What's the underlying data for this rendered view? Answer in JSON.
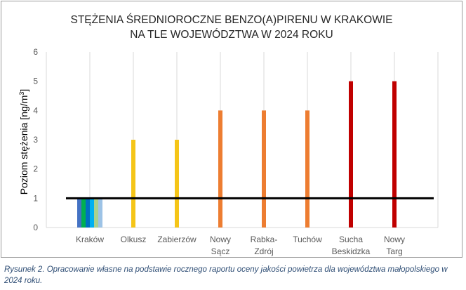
{
  "chart_data": {
    "type": "bar",
    "title_lines": [
      "STĘŻENIA ŚREDNIOROCZNE BENZO(A)PIRENU W KRAKOWIE",
      "NA TLE WOJEWÓDZTWA W 2024 ROKU"
    ],
    "ylabel_main": "Poziom stężenia [ng/m",
    "ylabel_sup": "3",
    "ylabel_end": "]",
    "ylim": [
      0,
      6
    ],
    "yticks": [
      "0",
      "1",
      "2",
      "3",
      "4",
      "5",
      "6"
    ],
    "grid": "vertical",
    "categories": [
      {
        "lines": [
          "Kraków"
        ]
      },
      {
        "lines": [
          "Olkusz"
        ]
      },
      {
        "lines": [
          "Zabierzów"
        ]
      },
      {
        "lines": [
          "Nowy",
          "Sącz"
        ]
      },
      {
        "lines": [
          "Rabka-",
          "Zdrój"
        ]
      },
      {
        "lines": [
          "Tuchów"
        ]
      },
      {
        "lines": [
          "Sucha",
          "Beskidzka"
        ]
      },
      {
        "lines": [
          "Nowy",
          "Targ"
        ]
      }
    ],
    "bars": [
      {
        "category": 0,
        "value": 1,
        "color": "#4472c4"
      },
      {
        "category": 0,
        "value": 1,
        "color": "#00b050"
      },
      {
        "category": 0,
        "value": 1,
        "color": "#0070c0"
      },
      {
        "category": 0,
        "value": 1,
        "color": "#00b0f0"
      },
      {
        "category": 0,
        "value": 1,
        "color": "#a9d18e"
      },
      {
        "category": 0,
        "value": 1,
        "color": "#9dc3e6"
      },
      {
        "category": 1,
        "value": 3,
        "color": "#f5c518"
      },
      {
        "category": 2,
        "value": 3,
        "color": "#f5c518"
      },
      {
        "category": 3,
        "value": 4,
        "color": "#ed7d31"
      },
      {
        "category": 4,
        "value": 4,
        "color": "#ed7d31"
      },
      {
        "category": 5,
        "value": 4,
        "color": "#ed7d31"
      },
      {
        "category": 6,
        "value": 5,
        "color": "#c00000"
      },
      {
        "category": 7,
        "value": 5,
        "color": "#c00000"
      }
    ],
    "reference_line": {
      "value": 1,
      "color": "#000000"
    },
    "axis_color": "#d9d9d9",
    "grid_color": "#d9d9d9"
  },
  "caption": "Rysunek 2. Opracowanie własne na podstawie rocznego raportu oceny jakości powietrza dla województwa małopolskiego w 2024 roku."
}
